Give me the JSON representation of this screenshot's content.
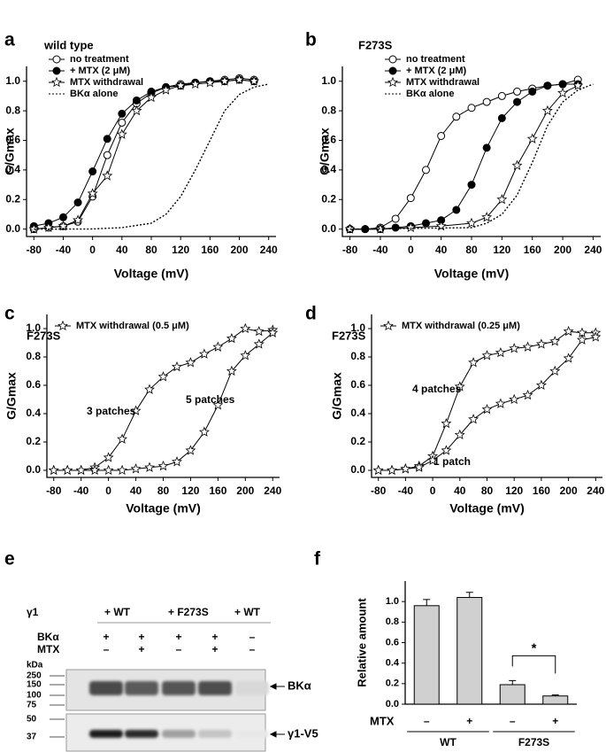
{
  "chart_data": [
    {
      "type": "line",
      "panel": "a",
      "title": "wild type",
      "xlabel": "Voltage (mV)",
      "ylabel": "G/Gmax",
      "xlim": [
        -90,
        250
      ],
      "ylim": [
        -0.05,
        1.1
      ],
      "xticks": [
        -80,
        -40,
        0,
        40,
        80,
        120,
        160,
        200,
        240
      ],
      "yticks": [
        {
          "value": 0,
          "label": "0.0"
        },
        0.2,
        0.4,
        0.6,
        0.8,
        {
          "value": 1,
          "label": "1.0"
        }
      ],
      "series": [
        {
          "name": "no treatment",
          "color": "#000000",
          "marker": "circle-open",
          "dash": false,
          "x": [
            -80,
            -60,
            -40,
            -20,
            0,
            20,
            40,
            60,
            80,
            100,
            120,
            140,
            160,
            180,
            200,
            220
          ],
          "values": [
            0.0,
            0.01,
            0.02,
            0.05,
            0.22,
            0.5,
            0.72,
            0.85,
            0.92,
            0.96,
            0.98,
            0.99,
            1.0,
            1.01,
            1.02,
            1.01
          ]
        },
        {
          "name": "+ MTX (2 μM)",
          "color": "#000000",
          "marker": "circle-filled",
          "dash": false,
          "x": [
            -80,
            -60,
            -40,
            -20,
            0,
            20,
            40,
            60,
            80,
            100,
            120,
            140,
            160,
            180,
            200,
            220
          ],
          "values": [
            0.02,
            0.04,
            0.08,
            0.18,
            0.39,
            0.61,
            0.78,
            0.87,
            0.93,
            0.96,
            0.97,
            0.99,
            1.0,
            1.0,
            1.01,
            1.0
          ]
        },
        {
          "name": "MTX withdrawal",
          "color": "#000000",
          "marker": "star",
          "dash": false,
          "x": [
            -80,
            -60,
            -40,
            -20,
            0,
            20,
            40,
            60,
            80,
            100,
            120,
            140,
            160,
            180,
            200,
            220
          ],
          "values": [
            0.0,
            0.01,
            0.02,
            0.06,
            0.24,
            0.36,
            0.64,
            0.8,
            0.89,
            0.94,
            0.97,
            0.98,
            0.99,
            1.0,
            1.01,
            1.0
          ]
        },
        {
          "name": "BKα alone",
          "color": "#000000",
          "marker": "none",
          "dash": true,
          "x": [
            -80,
            0,
            40,
            80,
            100,
            120,
            140,
            150,
            160,
            180,
            200,
            220,
            240
          ],
          "values": [
            0.0,
            0.001,
            0.01,
            0.04,
            0.1,
            0.22,
            0.4,
            0.5,
            0.6,
            0.8,
            0.91,
            0.96,
            0.98
          ]
        }
      ]
    },
    {
      "type": "line",
      "panel": "b",
      "title": "F273S",
      "xlabel": "Voltage (mV)",
      "ylabel": "G/Gmax",
      "xlim": [
        -90,
        250
      ],
      "ylim": [
        -0.05,
        1.1
      ],
      "xticks": [
        -80,
        -40,
        0,
        40,
        80,
        120,
        160,
        200,
        240
      ],
      "yticks": [
        {
          "value": 0,
          "label": "0.0"
        },
        0.2,
        0.4,
        0.6,
        0.8,
        {
          "value": 1,
          "label": "1.0"
        }
      ],
      "series": [
        {
          "name": "no treatment",
          "color": "#000000",
          "marker": "circle-open",
          "dash": false,
          "x": [
            -80,
            -60,
            -40,
            -20,
            0,
            20,
            40,
            60,
            80,
            100,
            120,
            140,
            160,
            180,
            200,
            220
          ],
          "values": [
            0.0,
            0.0,
            0.01,
            0.07,
            0.21,
            0.4,
            0.63,
            0.76,
            0.82,
            0.86,
            0.9,
            0.93,
            0.95,
            0.97,
            0.98,
            1.01
          ]
        },
        {
          "name": "+ MTX (2 μM)",
          "color": "#000000",
          "marker": "circle-filled",
          "dash": false,
          "x": [
            -80,
            -60,
            -40,
            -20,
            0,
            20,
            40,
            60,
            80,
            100,
            120,
            140,
            160,
            180,
            200,
            220
          ],
          "values": [
            0.0,
            0.0,
            0.0,
            0.01,
            0.02,
            0.04,
            0.06,
            0.13,
            0.3,
            0.55,
            0.75,
            0.86,
            0.93,
            0.97,
            0.98,
            0.98
          ]
        },
        {
          "name": "MTX withdrawal",
          "color": "#000000",
          "marker": "star",
          "dash": false,
          "x": [
            -80,
            -40,
            0,
            40,
            80,
            100,
            120,
            140,
            160,
            180,
            200,
            220
          ],
          "values": [
            0.0,
            0.0,
            0.01,
            0.02,
            0.04,
            0.08,
            0.2,
            0.43,
            0.61,
            0.8,
            0.92,
            0.97
          ]
        },
        {
          "name": "BKα alone",
          "color": "#000000",
          "marker": "none",
          "dash": true,
          "x": [
            -80,
            80,
            100,
            120,
            140,
            160,
            180,
            200,
            220,
            240
          ],
          "values": [
            0.0,
            0.01,
            0.04,
            0.1,
            0.23,
            0.45,
            0.7,
            0.86,
            0.94,
            0.98
          ]
        }
      ]
    },
    {
      "type": "line",
      "panel": "c",
      "title": "F273S",
      "xlabel": "Voltage (mV)",
      "ylabel": "G/Gmax",
      "xlim": [
        -90,
        250
      ],
      "ylim": [
        -0.05,
        1.1
      ],
      "xticks": [
        -80,
        -40,
        0,
        40,
        80,
        120,
        160,
        200,
        240
      ],
      "yticks": [
        {
          "value": 0,
          "label": "0.0"
        },
        0.2,
        0.4,
        0.6,
        0.8,
        {
          "value": 1,
          "label": "1.0"
        }
      ],
      "series": [
        {
          "name": "MTX withdrawal (0.5 μM)",
          "label": "3 patches",
          "color": "#000000",
          "marker": "star",
          "dash": false,
          "x": [
            -80,
            -60,
            -40,
            -20,
            0,
            20,
            40,
            60,
            80,
            100,
            120,
            140,
            160,
            180,
            200,
            220,
            240
          ],
          "values": [
            0.0,
            0.0,
            0.0,
            0.02,
            0.09,
            0.22,
            0.42,
            0.57,
            0.66,
            0.73,
            0.76,
            0.82,
            0.87,
            0.93,
            1.0,
            0.98,
            0.99
          ]
        },
        {
          "label": "5 patches",
          "color": "#000000",
          "marker": "star",
          "dash": false,
          "x": [
            -80,
            -60,
            -40,
            -20,
            0,
            20,
            40,
            60,
            80,
            100,
            120,
            140,
            160,
            180,
            200,
            220,
            240
          ],
          "values": [
            0.0,
            0.0,
            0.0,
            0.0,
            0.0,
            0.0,
            0.01,
            0.02,
            0.03,
            0.06,
            0.14,
            0.27,
            0.46,
            0.7,
            0.81,
            0.89,
            0.97
          ]
        }
      ]
    },
    {
      "type": "line",
      "panel": "d",
      "title": "F273S",
      "xlabel": "Voltage (mV)",
      "ylabel": "G/Gmax",
      "xlim": [
        -90,
        250
      ],
      "ylim": [
        -0.05,
        1.1
      ],
      "xticks": [
        -80,
        -40,
        0,
        40,
        80,
        120,
        160,
        200,
        240
      ],
      "yticks": [
        {
          "value": 0,
          "label": "0.0"
        },
        0.2,
        0.4,
        0.6,
        0.8,
        {
          "value": 1,
          "label": "1.0"
        }
      ],
      "series": [
        {
          "name": "MTX withdrawal (0.25 μM)",
          "label": "4 patches",
          "color": "#000000",
          "marker": "star",
          "dash": false,
          "x": [
            -80,
            -60,
            -40,
            -20,
            0,
            20,
            40,
            60,
            80,
            100,
            120,
            140,
            160,
            180,
            200,
            220,
            240
          ],
          "values": [
            0.0,
            0.0,
            0.01,
            0.03,
            0.1,
            0.33,
            0.59,
            0.76,
            0.81,
            0.83,
            0.86,
            0.87,
            0.89,
            0.91,
            0.98,
            0.97,
            0.97
          ]
        },
        {
          "label": "1 patch",
          "color": "#000000",
          "marker": "star",
          "dash": false,
          "x": [
            -80,
            -60,
            -40,
            -20,
            0,
            20,
            40,
            60,
            80,
            100,
            120,
            140,
            160,
            180,
            200,
            220,
            240
          ],
          "values": [
            0.0,
            0.0,
            0.01,
            0.02,
            0.07,
            0.14,
            0.25,
            0.36,
            0.43,
            0.47,
            0.5,
            0.53,
            0.6,
            0.7,
            0.79,
            0.92,
            0.94
          ]
        }
      ]
    },
    {
      "type": "bar",
      "panel": "f",
      "ylabel": "Relative amount",
      "row_label": "MTX",
      "categories": [
        "–",
        "+",
        "–",
        "+"
      ],
      "groups": [
        "WT",
        "F273S"
      ],
      "values": [
        0.96,
        1.04,
        0.19,
        0.08
      ],
      "errors": [
        0.06,
        0.05,
        0.04,
        0.01
      ],
      "color": "#d0d0d0",
      "ylim": [
        0,
        1.2
      ],
      "yticks": [
        {
          "value": 0,
          "label": "0.0"
        },
        0.2,
        0.4,
        0.6,
        0.8,
        {
          "value": 1,
          "label": "1.0"
        }
      ],
      "significance": "*"
    }
  ],
  "blot": {
    "panel": "e",
    "gamma_label": "γ1",
    "groups": [
      "+ WT",
      "+ F273S",
      "+ WT"
    ],
    "rows": [
      {
        "label": "BKα",
        "signs": [
          "+",
          "+",
          "+",
          "+",
          "–"
        ]
      },
      {
        "label": "MTX",
        "signs": [
          "–",
          "+",
          "–",
          "+",
          "–"
        ]
      }
    ],
    "kda_label": "kDa",
    "markers": [
      "250",
      "150",
      "100",
      "75",
      "50",
      "37"
    ],
    "bands": [
      "BKα",
      "γ1-V5"
    ]
  }
}
